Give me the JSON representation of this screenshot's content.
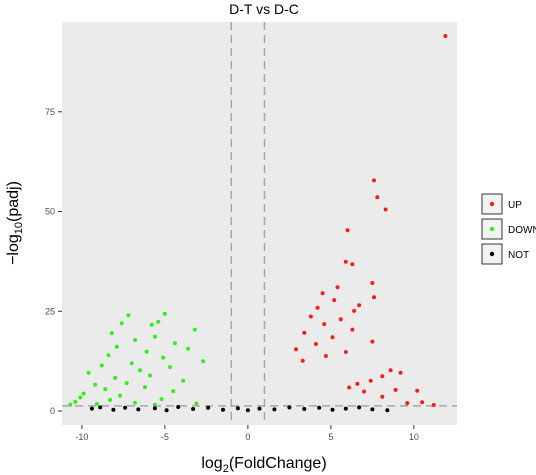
{
  "chart_data": {
    "type": "scatter",
    "title": "D-T vs D-C",
    "xlabel": {
      "base": "log",
      "sub": "2",
      "rest": "(FoldChange)"
    },
    "ylabel": {
      "base": "−log",
      "sub": "10",
      "rest": "(padj)"
    },
    "xlim": [
      -11.2,
      12.6
    ],
    "ylim": [
      -3.5,
      97.5
    ],
    "x_ticks": [
      -10,
      -5,
      0,
      5,
      10
    ],
    "y_ticks": [
      0,
      25,
      50,
      75
    ],
    "x_tick_labels": [
      "-10",
      "-5",
      "0",
      "5",
      "10"
    ],
    "y_tick_labels": [
      "0",
      "25",
      "50",
      "75"
    ],
    "grid": false,
    "background": "#ebebeb",
    "legend_position": "right",
    "reference_lines": {
      "vertical": [
        -1,
        1
      ],
      "horizontal": [
        1.3
      ]
    },
    "series": [
      {
        "name": "UP",
        "color": "#ff1a1a",
        "points": [
          [
            11.9,
            94.0
          ],
          [
            7.6,
            57.8
          ],
          [
            7.8,
            53.6
          ],
          [
            8.3,
            50.5
          ],
          [
            6.0,
            45.3
          ],
          [
            5.9,
            37.4
          ],
          [
            6.3,
            36.8
          ],
          [
            7.5,
            32.1
          ],
          [
            5.4,
            31.0
          ],
          [
            4.5,
            29.5
          ],
          [
            7.6,
            28.5
          ],
          [
            5.2,
            27.8
          ],
          [
            6.7,
            26.5
          ],
          [
            4.2,
            25.9
          ],
          [
            6.4,
            25.1
          ],
          [
            3.8,
            23.7
          ],
          [
            5.6,
            23.0
          ],
          [
            4.6,
            21.8
          ],
          [
            6.3,
            20.4
          ],
          [
            3.4,
            19.6
          ],
          [
            5.1,
            18.5
          ],
          [
            7.5,
            17.4
          ],
          [
            4.1,
            16.8
          ],
          [
            2.9,
            15.5
          ],
          [
            5.9,
            14.8
          ],
          [
            4.7,
            13.8
          ],
          [
            3.3,
            12.6
          ],
          [
            8.6,
            10.2
          ],
          [
            9.2,
            9.6
          ],
          [
            8.1,
            8.7
          ],
          [
            7.4,
            7.6
          ],
          [
            6.6,
            6.8
          ],
          [
            6.1,
            5.9
          ],
          [
            8.9,
            5.3
          ],
          [
            7.0,
            4.9
          ],
          [
            10.2,
            5.1
          ],
          [
            8.1,
            3.6
          ],
          [
            10.5,
            2.2
          ],
          [
            11.2,
            1.5
          ],
          [
            9.6,
            2.0
          ]
        ]
      },
      {
        "name": "DOWN",
        "color": "#33ee1a",
        "points": [
          [
            -7.2,
            24.0
          ],
          [
            -5.0,
            24.4
          ],
          [
            -5.4,
            22.4
          ],
          [
            -7.6,
            22.0
          ],
          [
            -5.8,
            21.6
          ],
          [
            -3.2,
            20.4
          ],
          [
            -8.2,
            19.5
          ],
          [
            -5.6,
            18.6
          ],
          [
            -6.8,
            17.8
          ],
          [
            -4.4,
            17.0
          ],
          [
            -7.9,
            16.1
          ],
          [
            -3.6,
            15.6
          ],
          [
            -6.1,
            14.9
          ],
          [
            -8.4,
            14.0
          ],
          [
            -5.1,
            13.4
          ],
          [
            -2.7,
            12.5
          ],
          [
            -7.0,
            12.0
          ],
          [
            -8.8,
            11.4
          ],
          [
            -4.7,
            11.0
          ],
          [
            -6.5,
            10.2
          ],
          [
            -9.6,
            9.6
          ],
          [
            -5.9,
            8.9
          ],
          [
            -8.0,
            8.3
          ],
          [
            -3.9,
            7.6
          ],
          [
            -7.3,
            7.0
          ],
          [
            -9.2,
            6.6
          ],
          [
            -6.2,
            6.0
          ],
          [
            -8.6,
            5.5
          ],
          [
            -4.5,
            5.0
          ],
          [
            -9.9,
            4.4
          ],
          [
            -7.7,
            3.9
          ],
          [
            -10.1,
            3.4
          ],
          [
            -5.2,
            3.0
          ],
          [
            -8.3,
            2.8
          ],
          [
            -10.4,
            2.3
          ],
          [
            -6.8,
            2.1
          ],
          [
            -9.1,
            1.8
          ],
          [
            -10.7,
            1.6
          ],
          [
            -3.1,
            1.9
          ],
          [
            -5.6,
            1.6
          ]
        ]
      },
      {
        "name": "NOT",
        "color": "#000000",
        "points": [
          [
            -9.4,
            0.6
          ],
          [
            -8.9,
            0.9
          ],
          [
            -8.1,
            0.3
          ],
          [
            -7.4,
            0.8
          ],
          [
            -6.6,
            0.4
          ],
          [
            -5.6,
            0.7
          ],
          [
            -4.9,
            0.2
          ],
          [
            -4.2,
            1.0
          ],
          [
            -3.3,
            0.5
          ],
          [
            -2.4,
            0.8
          ],
          [
            -1.5,
            0.3
          ],
          [
            -0.6,
            0.7
          ],
          [
            0.0,
            0.2
          ],
          [
            0.7,
            0.6
          ],
          [
            1.6,
            0.4
          ],
          [
            2.5,
            0.9
          ],
          [
            3.4,
            0.5
          ],
          [
            4.3,
            0.8
          ],
          [
            5.1,
            0.3
          ],
          [
            5.9,
            0.6
          ],
          [
            6.7,
            0.9
          ],
          [
            7.5,
            0.4
          ],
          [
            8.4,
            0.2
          ]
        ]
      }
    ]
  },
  "legend": {
    "items": [
      {
        "label": "UP",
        "color": "#ff1a1a"
      },
      {
        "label": "DOWN",
        "color": "#33ee1a"
      },
      {
        "label": "NOT",
        "color": "#000000"
      }
    ]
  }
}
